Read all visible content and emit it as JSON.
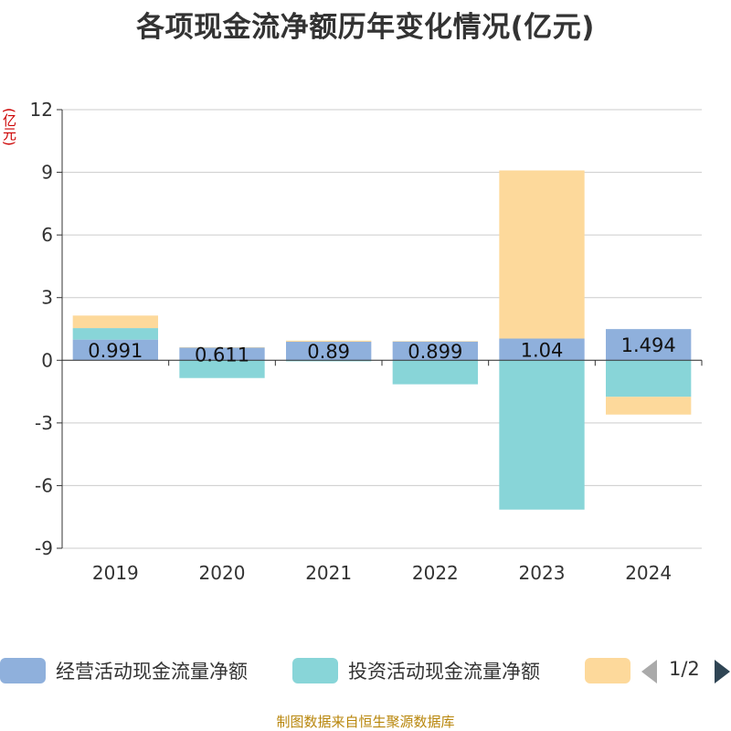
{
  "chart_data": {
    "type": "bar",
    "stacked": true,
    "title": "各项现金流净额历年变化情况(亿元)",
    "ylabel": "(亿元)",
    "categories": [
      "2019",
      "2020",
      "2021",
      "2022",
      "2023",
      "2024"
    ],
    "ylim": [
      -9,
      12
    ],
    "yticks": [
      -9,
      -6,
      -3,
      0,
      3,
      6,
      9,
      12
    ],
    "grid": true,
    "legend_position": "bottom",
    "series": [
      {
        "name": "经营活动现金流量净额",
        "color": "#8fb0dc",
        "values": [
          0.991,
          0.611,
          0.89,
          0.899,
          1.04,
          1.494
        ],
        "labels": [
          "0.991",
          "0.611",
          "0.89",
          "0.899",
          "1.04",
          "1.494"
        ]
      },
      {
        "name": "投资活动现金流量净额",
        "color": "#88d5d8",
        "values": [
          0.55,
          -0.85,
          -0.05,
          -1.15,
          -7.15,
          -1.75
        ]
      },
      {
        "name": "",
        "color": "#fdd99b",
        "values": [
          0.6,
          0.02,
          0.05,
          0.02,
          8.05,
          -0.85
        ]
      }
    ]
  },
  "legend": {
    "items": [
      {
        "label": "经营活动现金流量净额",
        "color": "#8fb0dc"
      },
      {
        "label": "投资活动现金流量净额",
        "color": "#88d5d8"
      },
      {
        "label": "",
        "color": "#fdd99b"
      }
    ],
    "page": "1/2"
  },
  "source": "制图数据来自恒生聚源数据库"
}
